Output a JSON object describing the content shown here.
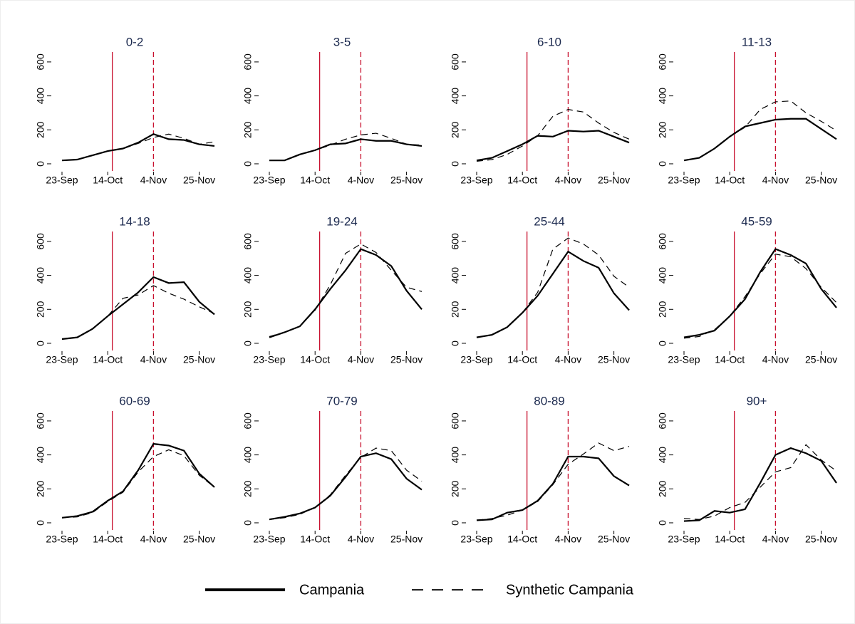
{
  "chart_data": [
    {
      "type": "line",
      "title": "0-2",
      "categories": [
        "23-Sep",
        null,
        null,
        "14-Oct",
        null,
        null,
        "4-Nov",
        null,
        null,
        "25-Nov",
        null
      ],
      "ylim": [
        -40,
        650
      ],
      "yticks": [
        0,
        200,
        400,
        600
      ],
      "vlines": [
        {
          "x": 3.3,
          "style": "solid",
          "color": "#c8102e"
        },
        {
          "x": 6,
          "style": "dashed",
          "color": "#c8102e"
        }
      ],
      "series": [
        {
          "name": "Campania",
          "color": "#000000",
          "line_style": "solid",
          "values": [
            20,
            25,
            50,
            75,
            90,
            125,
            175,
            145,
            140,
            115,
            105
          ]
        },
        {
          "name": "Synthetic Campania",
          "color": "#000000",
          "line_style": "dashed",
          "values": [
            20,
            25,
            50,
            75,
            90,
            120,
            155,
            175,
            150,
            115,
            130
          ]
        }
      ]
    },
    {
      "type": "line",
      "title": "3-5",
      "categories": [
        "23-Sep",
        null,
        null,
        "14-Oct",
        null,
        null,
        "4-Nov",
        null,
        null,
        "25-Nov",
        null
      ],
      "ylim": [
        -40,
        650
      ],
      "yticks": [
        0,
        200,
        400,
        600
      ],
      "vlines": [
        {
          "x": 3.3,
          "style": "solid",
          "color": "#c8102e"
        },
        {
          "x": 6,
          "style": "dashed",
          "color": "#c8102e"
        }
      ],
      "series": [
        {
          "name": "Campania",
          "color": "#000000",
          "line_style": "solid",
          "values": [
            20,
            20,
            55,
            80,
            115,
            120,
            145,
            135,
            135,
            115,
            105
          ]
        },
        {
          "name": "Synthetic Campania",
          "color": "#000000",
          "line_style": "dashed",
          "values": [
            20,
            20,
            55,
            80,
            110,
            145,
            170,
            180,
            150,
            115,
            110
          ]
        }
      ]
    },
    {
      "type": "line",
      "title": "6-10",
      "categories": [
        "23-Sep",
        null,
        null,
        "14-Oct",
        null,
        null,
        "4-Nov",
        null,
        null,
        "25-Nov",
        null
      ],
      "ylim": [
        -40,
        650
      ],
      "yticks": [
        0,
        200,
        400,
        600
      ],
      "vlines": [
        {
          "x": 3.3,
          "style": "solid",
          "color": "#c8102e"
        },
        {
          "x": 6,
          "style": "dashed",
          "color": "#c8102e"
        }
      ],
      "series": [
        {
          "name": "Campania",
          "color": "#000000",
          "line_style": "solid",
          "values": [
            20,
            35,
            75,
            115,
            165,
            160,
            195,
            190,
            195,
            160,
            125
          ]
        },
        {
          "name": "Synthetic Campania",
          "color": "#000000",
          "line_style": "dashed",
          "values": [
            15,
            25,
            55,
            105,
            165,
            280,
            320,
            305,
            240,
            185,
            145
          ]
        }
      ]
    },
    {
      "type": "line",
      "title": "11-13",
      "categories": [
        "23-Sep",
        null,
        null,
        "14-Oct",
        null,
        null,
        "4-Nov",
        null,
        null,
        "25-Nov",
        null
      ],
      "ylim": [
        -40,
        650
      ],
      "yticks": [
        0,
        200,
        400,
        600
      ],
      "vlines": [
        {
          "x": 3.3,
          "style": "solid",
          "color": "#c8102e"
        },
        {
          "x": 6,
          "style": "dashed",
          "color": "#c8102e"
        }
      ],
      "series": [
        {
          "name": "Campania",
          "color": "#000000",
          "line_style": "solid",
          "values": [
            20,
            35,
            90,
            160,
            220,
            240,
            260,
            265,
            265,
            205,
            145
          ]
        },
        {
          "name": "Synthetic Campania",
          "color": "#000000",
          "line_style": "dashed",
          "values": [
            20,
            35,
            90,
            160,
            215,
            320,
            365,
            370,
            300,
            250,
            195
          ]
        }
      ]
    },
    {
      "type": "line",
      "title": "14-18",
      "categories": [
        "23-Sep",
        null,
        null,
        "14-Oct",
        null,
        null,
        "4-Nov",
        null,
        null,
        "25-Nov",
        null
      ],
      "ylim": [
        -40,
        650
      ],
      "yticks": [
        0,
        200,
        400,
        600
      ],
      "vlines": [
        {
          "x": 3.3,
          "style": "solid",
          "color": "#c8102e"
        },
        {
          "x": 6,
          "style": "dashed",
          "color": "#c8102e"
        }
      ],
      "series": [
        {
          "name": "Campania",
          "color": "#000000",
          "line_style": "solid",
          "values": [
            25,
            35,
            85,
            160,
            230,
            300,
            390,
            355,
            360,
            245,
            170
          ]
        },
        {
          "name": "Synthetic Campania",
          "color": "#000000",
          "line_style": "dashed",
          "values": [
            25,
            35,
            85,
            160,
            265,
            285,
            340,
            295,
            260,
            215,
            175
          ]
        }
      ]
    },
    {
      "type": "line",
      "title": "19-24",
      "categories": [
        "23-Sep",
        null,
        null,
        "14-Oct",
        null,
        null,
        "4-Nov",
        null,
        null,
        "25-Nov",
        null
      ],
      "ylim": [
        -40,
        650
      ],
      "yticks": [
        0,
        200,
        400,
        600
      ],
      "vlines": [
        {
          "x": 3.3,
          "style": "solid",
          "color": "#c8102e"
        },
        {
          "x": 6,
          "style": "dashed",
          "color": "#c8102e"
        }
      ],
      "series": [
        {
          "name": "Campania",
          "color": "#000000",
          "line_style": "solid",
          "values": [
            35,
            65,
            100,
            200,
            320,
            430,
            555,
            520,
            455,
            310,
            200
          ]
        },
        {
          "name": "Synthetic Campania",
          "color": "#000000",
          "line_style": "dashed",
          "values": [
            40,
            65,
            100,
            195,
            345,
            530,
            585,
            535,
            430,
            330,
            305
          ]
        }
      ]
    },
    {
      "type": "line",
      "title": "25-44",
      "categories": [
        "23-Sep",
        null,
        null,
        "14-Oct",
        null,
        null,
        "4-Nov",
        null,
        null,
        "25-Nov",
        null
      ],
      "ylim": [
        -40,
        650
      ],
      "yticks": [
        0,
        200,
        400,
        600
      ],
      "vlines": [
        {
          "x": 3.3,
          "style": "solid",
          "color": "#c8102e"
        },
        {
          "x": 6,
          "style": "dashed",
          "color": "#c8102e"
        }
      ],
      "series": [
        {
          "name": "Campania",
          "color": "#000000",
          "line_style": "solid",
          "values": [
            35,
            50,
            95,
            180,
            280,
            410,
            540,
            485,
            445,
            295,
            195
          ]
        },
        {
          "name": "Synthetic Campania",
          "color": "#000000",
          "line_style": "dashed",
          "values": [
            35,
            50,
            95,
            180,
            300,
            555,
            620,
            585,
            520,
            395,
            330
          ]
        }
      ]
    },
    {
      "type": "line",
      "title": "45-59",
      "categories": [
        "23-Sep",
        null,
        null,
        "14-Oct",
        null,
        null,
        "4-Nov",
        null,
        null,
        "25-Nov",
        null
      ],
      "ylim": [
        -40,
        650
      ],
      "yticks": [
        0,
        200,
        400,
        600
      ],
      "vlines": [
        {
          "x": 3.3,
          "style": "solid",
          "color": "#c8102e"
        },
        {
          "x": 6,
          "style": "dashed",
          "color": "#c8102e"
        }
      ],
      "series": [
        {
          "name": "Campania",
          "color": "#000000",
          "line_style": "solid",
          "values": [
            35,
            50,
            75,
            160,
            260,
            420,
            555,
            520,
            470,
            320,
            210
          ]
        },
        {
          "name": "Synthetic Campania",
          "color": "#000000",
          "line_style": "dashed",
          "values": [
            30,
            40,
            80,
            160,
            275,
            410,
            525,
            510,
            440,
            330,
            240
          ]
        }
      ]
    },
    {
      "type": "line",
      "title": "60-69",
      "categories": [
        "23-Sep",
        null,
        null,
        "14-Oct",
        null,
        null,
        "4-Nov",
        null,
        null,
        "25-Nov",
        null
      ],
      "ylim": [
        -40,
        650
      ],
      "yticks": [
        0,
        200,
        400,
        600
      ],
      "vlines": [
        {
          "x": 3.3,
          "style": "solid",
          "color": "#c8102e"
        },
        {
          "x": 6,
          "style": "dashed",
          "color": "#c8102e"
        }
      ],
      "series": [
        {
          "name": "Campania",
          "color": "#000000",
          "line_style": "solid",
          "values": [
            30,
            40,
            65,
            130,
            185,
            310,
            465,
            455,
            425,
            290,
            210
          ]
        },
        {
          "name": "Synthetic Campania",
          "color": "#000000",
          "line_style": "dashed",
          "values": [
            30,
            35,
            60,
            125,
            180,
            300,
            390,
            430,
            395,
            280,
            210
          ]
        }
      ]
    },
    {
      "type": "line",
      "title": "70-79",
      "categories": [
        "23-Sep",
        null,
        null,
        "14-Oct",
        null,
        null,
        "4-Nov",
        null,
        null,
        "25-Nov",
        null
      ],
      "ylim": [
        -40,
        650
      ],
      "yticks": [
        0,
        200,
        400,
        600
      ],
      "vlines": [
        {
          "x": 3.3,
          "style": "solid",
          "color": "#c8102e"
        },
        {
          "x": 6,
          "style": "dashed",
          "color": "#c8102e"
        }
      ],
      "series": [
        {
          "name": "Campania",
          "color": "#000000",
          "line_style": "solid",
          "values": [
            20,
            35,
            55,
            90,
            160,
            270,
            390,
            410,
            375,
            260,
            195
          ]
        },
        {
          "name": "Synthetic Campania",
          "color": "#000000",
          "line_style": "dashed",
          "values": [
            20,
            30,
            50,
            90,
            165,
            280,
            385,
            440,
            425,
            310,
            245
          ]
        }
      ]
    },
    {
      "type": "line",
      "title": "80-89",
      "categories": [
        "23-Sep",
        null,
        null,
        "14-Oct",
        null,
        null,
        "4-Nov",
        null,
        null,
        "25-Nov",
        null
      ],
      "ylim": [
        -40,
        650
      ],
      "yticks": [
        0,
        200,
        400,
        600
      ],
      "vlines": [
        {
          "x": 3.3,
          "style": "solid",
          "color": "#c8102e"
        },
        {
          "x": 6,
          "style": "dashed",
          "color": "#c8102e"
        }
      ],
      "series": [
        {
          "name": "Campania",
          "color": "#000000",
          "line_style": "solid",
          "values": [
            15,
            20,
            60,
            75,
            130,
            230,
            390,
            390,
            380,
            275,
            220
          ]
        },
        {
          "name": "Synthetic Campania",
          "color": "#000000",
          "line_style": "dashed",
          "values": [
            15,
            25,
            45,
            75,
            125,
            225,
            345,
            405,
            470,
            425,
            450
          ]
        }
      ]
    },
    {
      "type": "line",
      "title": "90+",
      "categories": [
        "23-Sep",
        null,
        null,
        "14-Oct",
        null,
        null,
        "4-Nov",
        null,
        null,
        "25-Nov",
        null
      ],
      "ylim": [
        -40,
        650
      ],
      "yticks": [
        0,
        200,
        400,
        600
      ],
      "vlines": [
        {
          "x": 3.3,
          "style": "solid",
          "color": "#c8102e"
        },
        {
          "x": 6,
          "style": "dashed",
          "color": "#c8102e"
        }
      ],
      "series": [
        {
          "name": "Campania",
          "color": "#000000",
          "line_style": "solid",
          "values": [
            10,
            15,
            70,
            60,
            80,
            235,
            400,
            440,
            410,
            365,
            235
          ]
        },
        {
          "name": "Synthetic Campania",
          "color": "#000000",
          "line_style": "dashed",
          "values": [
            25,
            20,
            40,
            90,
            120,
            210,
            300,
            325,
            460,
            370,
            305
          ]
        }
      ]
    }
  ]
}
